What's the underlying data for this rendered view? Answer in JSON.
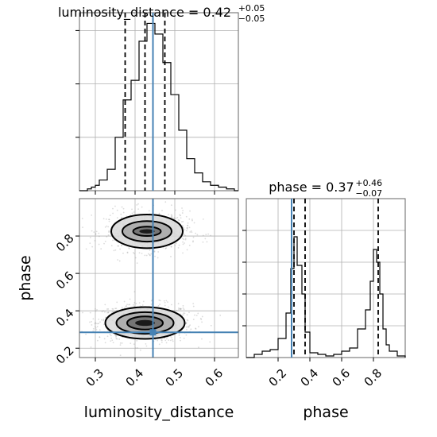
{
  "chart_data": {
    "type": "corner",
    "parameters": [
      "luminosity_distance",
      "phase"
    ],
    "truth": {
      "luminosity_distance": 0.445,
      "phase": 0.285,
      "color": "#4682b4"
    },
    "panels": [
      {
        "id": "luminosity_distance_1d",
        "type": "histogram",
        "title": {
          "main": "luminosity_distance = 0.42",
          "upper": "+0.05",
          "lower": "−0.05"
        },
        "xlim": [
          0.26,
          0.66
        ],
        "ylim": [
          0,
          1.0
        ],
        "xticks": [
          0.3,
          0.4,
          0.5,
          0.6
        ],
        "quantiles": [
          0.375,
          0.425,
          0.475
        ],
        "bin_edges": [
          0.26,
          0.27,
          0.28,
          0.29,
          0.3,
          0.31,
          0.32,
          0.33,
          0.34,
          0.35,
          0.36,
          0.37,
          0.38,
          0.39,
          0.4,
          0.41,
          0.42,
          0.43,
          0.44,
          0.45,
          0.46,
          0.47,
          0.48,
          0.49,
          0.5,
          0.51,
          0.52,
          0.53,
          0.54,
          0.55,
          0.56,
          0.57,
          0.58,
          0.59,
          0.6,
          0.61,
          0.62,
          0.63,
          0.64,
          0.65,
          0.66
        ],
        "counts": [
          0.0,
          0.0,
          0.01,
          0.02,
          0.03,
          0.06,
          0.06,
          0.12,
          0.12,
          0.3,
          0.3,
          0.51,
          0.51,
          0.62,
          0.62,
          0.84,
          0.84,
          0.94,
          0.94,
          0.88,
          0.88,
          0.72,
          0.72,
          0.54,
          0.54,
          0.34,
          0.34,
          0.18,
          0.18,
          0.1,
          0.1,
          0.05,
          0.05,
          0.03,
          0.03,
          0.02,
          0.02,
          0.01,
          0.01,
          0.0
        ]
      },
      {
        "id": "phase_1d",
        "type": "histogram",
        "title": {
          "main": "phase = 0.37",
          "upper": "+0.46",
          "lower": "−0.07"
        },
        "xlim": [
          0.0,
          1.0
        ],
        "ylim": [
          0,
          1.0
        ],
        "xticks": [
          0.2,
          0.4,
          0.6,
          0.8
        ],
        "quantiles": [
          0.3,
          0.37,
          0.83
        ],
        "bin_edges": [
          0.0,
          0.05,
          0.1,
          0.15,
          0.2,
          0.25,
          0.28,
          0.3,
          0.32,
          0.35,
          0.37,
          0.4,
          0.45,
          0.5,
          0.55,
          0.6,
          0.65,
          0.7,
          0.75,
          0.78,
          0.8,
          0.82,
          0.84,
          0.86,
          0.88,
          0.9,
          0.95,
          1.0
        ],
        "counts": [
          0.0,
          0.02,
          0.04,
          0.05,
          0.12,
          0.28,
          0.56,
          0.76,
          0.58,
          0.4,
          0.16,
          0.03,
          0.02,
          0.01,
          0.02,
          0.04,
          0.06,
          0.18,
          0.3,
          0.48,
          0.68,
          0.6,
          0.4,
          0.18,
          0.08,
          0.04,
          0.01
        ]
      },
      {
        "id": "joint_2d",
        "type": "contour",
        "xlim": [
          0.26,
          0.66
        ],
        "ylim": [
          0.15,
          1.0
        ],
        "xticks": [
          0.3,
          0.4,
          0.5,
          0.6
        ],
        "yticks": [
          0.2,
          0.4,
          0.6,
          0.8
        ],
        "xlabel": "luminosity_distance",
        "ylabel": "phase",
        "modes": [
          {
            "center": [
              0.425,
              0.335
            ],
            "levels": [
              {
                "rx": 0.1,
                "ry": 0.085
              },
              {
                "rx": 0.072,
                "ry": 0.058
              },
              {
                "rx": 0.045,
                "ry": 0.035
              }
            ]
          },
          {
            "center": [
              0.43,
              0.825
            ],
            "levels": [
              {
                "rx": 0.09,
                "ry": 0.09
              },
              {
                "rx": 0.062,
                "ry": 0.055
              },
              {
                "rx": 0.035,
                "ry": 0.025
              }
            ]
          }
        ]
      }
    ],
    "xlabels": [
      "luminosity_distance",
      "phase"
    ],
    "ylabels": [
      "phase"
    ]
  },
  "labels": {
    "x1": "luminosity_distance",
    "x2": "phase",
    "y": "phase"
  }
}
